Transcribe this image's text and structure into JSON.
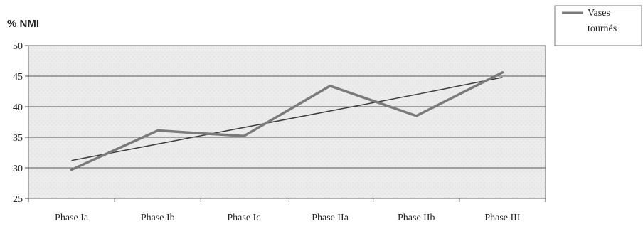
{
  "chart_data": {
    "type": "line",
    "title": "",
    "xlabel": "",
    "ylabel": "% NMI",
    "ylim": [
      25,
      50
    ],
    "yticks": [
      25,
      30,
      35,
      40,
      45,
      50
    ],
    "categories": [
      "Phase Ia",
      "Phase Ib",
      "Phase Ic",
      "Phase IIa",
      "Phase IIb",
      "Phase III"
    ],
    "series": [
      {
        "name": "Vases tournés",
        "values": [
          29.7,
          36.1,
          35.2,
          43.4,
          38.5,
          45.6
        ],
        "color": "#7a7a7a"
      }
    ],
    "trendline": {
      "values": [
        31.2,
        33.9,
        36.6,
        39.3,
        42.0,
        44.8
      ],
      "color": "#3a3a3a"
    },
    "grid": true,
    "legend": {
      "position": "top-right",
      "lines": [
        "Vases",
        "tournés"
      ]
    },
    "colors": {
      "plot_background": "#ebebeb",
      "gridline": "#555555"
    }
  }
}
